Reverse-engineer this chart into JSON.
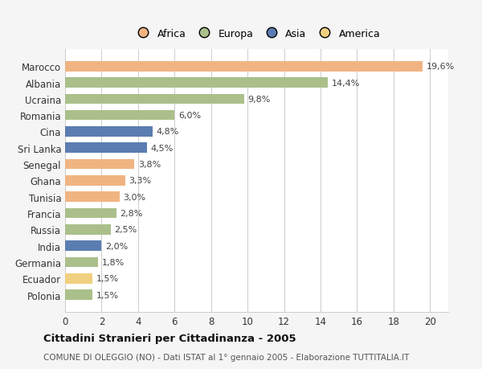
{
  "countries": [
    "Polonia",
    "Ecuador",
    "Germania",
    "India",
    "Russia",
    "Francia",
    "Tunisia",
    "Ghana",
    "Senegal",
    "Sri Lanka",
    "Cina",
    "Romania",
    "Ucraina",
    "Albania",
    "Marocco"
  ],
  "values": [
    1.5,
    1.5,
    1.8,
    2.0,
    2.5,
    2.8,
    3.0,
    3.3,
    3.8,
    4.5,
    4.8,
    6.0,
    9.8,
    14.4,
    19.6
  ],
  "labels": [
    "1,5%",
    "1,5%",
    "1,8%",
    "2,0%",
    "2,5%",
    "2,8%",
    "3,0%",
    "3,3%",
    "3,8%",
    "4,5%",
    "4,8%",
    "6,0%",
    "9,8%",
    "14,4%",
    "19,6%"
  ],
  "continents": [
    "Europa",
    "America",
    "Europa",
    "Asia",
    "Europa",
    "Europa",
    "Africa",
    "Africa",
    "Africa",
    "Asia",
    "Asia",
    "Europa",
    "Europa",
    "Europa",
    "Africa"
  ],
  "colors": {
    "Africa": "#F0B482",
    "Europa": "#AABF8A",
    "Asia": "#5B7DB1",
    "America": "#F0D080"
  },
  "legend_order": [
    "Africa",
    "Europa",
    "Asia",
    "America"
  ],
  "legend_colors": [
    "#F0B482",
    "#AABF8A",
    "#5B7DB1",
    "#F0D080"
  ],
  "title": "Cittadini Stranieri per Cittadinanza - 2005",
  "subtitle": "COMUNE DI OLEGGIO (NO) - Dati ISTAT al 1° gennaio 2005 - Elaborazione TUTTITALIA.IT",
  "xlim": [
    0,
    21
  ],
  "xticks": [
    0,
    2,
    4,
    6,
    8,
    10,
    12,
    14,
    16,
    18,
    20
  ],
  "bg_color": "#f5f5f5",
  "plot_bg_color": "#ffffff",
  "grid_color": "#cccccc"
}
